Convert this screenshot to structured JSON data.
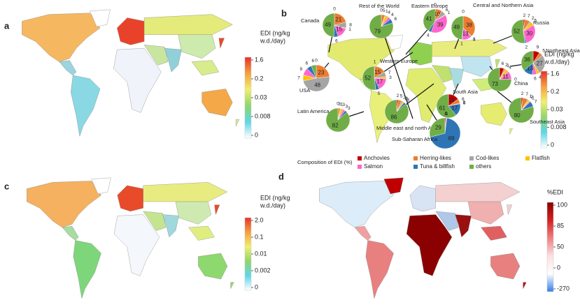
{
  "panels": {
    "a": "a",
    "b": "b",
    "c": "c",
    "d": "d"
  },
  "colorbars": [
    {
      "title": [
        "EDI (ng/kg",
        "w.d./day)"
      ],
      "ticks": [
        1.6,
        0.2,
        0.03,
        0.008,
        0
      ],
      "colors": [
        "#e8302a",
        "#f5a040",
        "#f2ee70",
        "#8fd66a",
        "#5fd6e8",
        "#ffffff"
      ]
    },
    {
      "title": [
        "EDI (ng/kg",
        "w.d./day)"
      ],
      "ticks": [
        1.6,
        0.2,
        0.03,
        0.008,
        0
      ],
      "colors": [
        "#e8302a",
        "#f5a040",
        "#f2ee70",
        "#8fd66a",
        "#5fd6e8",
        "#ffffff"
      ]
    },
    {
      "title": [
        "EDI (ng/kg",
        "w.d./day)"
      ],
      "ticks": [
        {
          "value": 2,
          "label": "2.0"
        },
        0.1,
        0.01,
        0.002,
        0
      ],
      "colors": [
        "#e8302a",
        "#f5a040",
        "#f2ee70",
        "#8fd66a",
        "#5fd6e8",
        "#ffffff"
      ]
    },
    {
      "title": [
        "%EDI"
      ],
      "ticks": [
        100,
        85,
        50,
        0,
        -270
      ],
      "colors": [
        "#8b0000",
        "#d42020",
        "#f08080",
        "#fbe0e0",
        "#ffffff",
        "#2f7fe8"
      ]
    }
  ],
  "legend": {
    "title": "Composition of EDI (%)",
    "items": [
      {
        "name": "Anchovies",
        "color": "#c00000"
      },
      {
        "name": "Herring-likes",
        "color": "#ed7d31"
      },
      {
        "name": "Cod-likes",
        "color": "#a5a5a5"
      },
      {
        "name": "Flatfish",
        "color": "#ffc000"
      },
      {
        "name": "Salmon",
        "color": "#ff66cc"
      },
      {
        "name": "Tuna & billfish",
        "color": "#2e75b6"
      },
      {
        "name": "others",
        "color": "#70ad47"
      }
    ]
  },
  "pies": [
    {
      "name": "Canada",
      "values": [
        0,
        21,
        8,
        1,
        15,
        6,
        49
      ]
    },
    {
      "name": "Rest of the World",
      "values": [
        0,
        5,
        1,
        4,
        4,
        6,
        79
      ]
    },
    {
      "name": "Eastern Europe",
      "values": [
        0,
        10,
        6,
        1,
        39,
        4,
        41
      ]
    },
    {
      "name": "Central and Northern Asia",
      "values": [
        0,
        38,
        1,
        0,
        13,
        1,
        49
      ]
    },
    {
      "name": "Russia",
      "values": [
        2,
        7,
        2,
        5,
        30,
        2,
        52
      ]
    },
    {
      "name": "USA",
      "values": [
        0,
        23,
        48,
        7,
        9,
        6,
        6
      ]
    },
    {
      "name": "Western Europe",
      "values": [
        1,
        15,
        7,
        3,
        17,
        5,
        52
      ]
    },
    {
      "name": "Northeast Asia",
      "values": [
        9,
        5,
        27,
        4,
        6,
        13,
        36
      ]
    },
    {
      "name": "China",
      "values": [
        6,
        2,
        1,
        4,
        11,
        0,
        73
      ]
    },
    {
      "name": "Latin America",
      "values": [
        0,
        3,
        1,
        3,
        3,
        3,
        82
      ]
    },
    {
      "name": "Middle east and north Africa",
      "values": [
        2,
        5,
        2,
        2,
        0,
        3,
        86
      ]
    },
    {
      "name": "South Asia",
      "values": [
        15,
        6,
        1,
        0,
        0,
        17,
        61
      ]
    },
    {
      "name": "Sub-Saharan Africa",
      "values": [
        1,
        0,
        0,
        0,
        1,
        69,
        29
      ]
    },
    {
      "name": "Southeast Asia",
      "values": [
        2,
        7,
        1,
        2,
        1,
        7,
        80
      ]
    }
  ]
}
